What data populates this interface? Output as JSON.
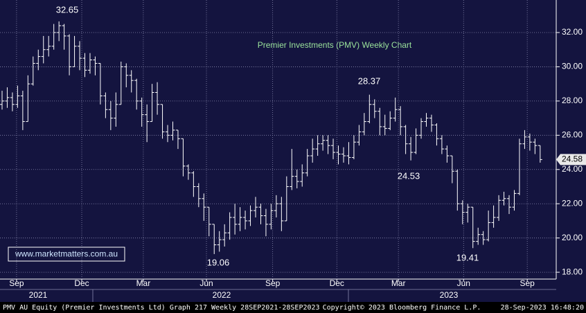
{
  "chart_data": {
    "type": "ohlc",
    "title": "Premier Investments (PMV) Weekly Chart",
    "color": "#ffffff",
    "open": [
      27.8,
      28.0,
      28.2,
      27.8,
      28.3,
      26.8,
      29.0,
      30.2,
      30.6,
      31.0,
      31.2,
      32.0,
      32.4,
      31.8,
      30.0,
      31.2,
      30.5,
      29.8,
      30.4,
      30.2,
      28.3,
      27.5,
      27.0,
      27.8,
      30.0,
      29.5,
      29.2,
      28.0,
      27.2,
      26.8,
      28.5,
      27.8,
      26.2,
      26.0,
      26.3,
      25.8,
      24.2,
      23.8,
      23.0,
      22.3,
      21.8,
      20.8,
      19.6,
      19.9,
      20.3,
      21.2,
      20.8,
      21.2,
      21.0,
      21.6,
      21.8,
      21.3,
      20.8,
      21.6,
      22.0,
      21.0,
      23.0,
      23.6,
      23.3,
      23.8,
      24.8,
      25.2,
      25.5,
      25.7,
      25.4,
      25.0,
      24.9,
      24.8,
      24.7,
      25.6,
      26.2,
      26.8,
      27.8,
      27.4,
      26.5,
      26.4,
      27.0,
      27.5,
      26.5,
      25.5,
      25.0,
      26.0,
      26.8,
      27.0,
      26.6,
      25.8,
      25.2,
      24.8,
      23.9,
      22.0,
      21.5,
      21.8,
      19.8,
      20.2,
      19.9,
      20.9,
      21.2,
      22.2,
      22.3,
      21.8,
      22.6,
      25.5,
      25.9,
      25.6,
      25.4
    ],
    "high": [
      28.6,
      28.8,
      28.5,
      28.9,
      28.6,
      29.5,
      30.6,
      31.0,
      31.8,
      31.8,
      32.5,
      32.65,
      32.5,
      31.9,
      31.8,
      31.5,
      30.8,
      30.8,
      30.6,
      30.2,
      28.5,
      28.0,
      28.5,
      30.3,
      30.2,
      29.8,
      29.3,
      28.2,
      27.8,
      29.0,
      29.1,
      27.8,
      26.6,
      26.8,
      26.3,
      25.8,
      24.3,
      23.9,
      23.2,
      22.6,
      21.8,
      20.8,
      20.4,
      20.8,
      21.5,
      22.0,
      21.8,
      21.6,
      21.9,
      22.4,
      22.0,
      21.7,
      22.0,
      22.5,
      22.4,
      23.6,
      25.2,
      24.0,
      24.3,
      25.2,
      25.8,
      26.0,
      26.0,
      26.0,
      25.8,
      25.4,
      25.3,
      25.6,
      26.0,
      26.6,
      27.3,
      28.37,
      28.1,
      27.6,
      27.2,
      27.4,
      28.2,
      27.7,
      26.6,
      25.9,
      26.4,
      27.0,
      27.3,
      27.2,
      26.7,
      26.0,
      25.4,
      24.8,
      24.0,
      22.2,
      22.0,
      21.8,
      20.6,
      20.4,
      21.6,
      21.9,
      22.5,
      22.7,
      22.5,
      22.8,
      25.8,
      26.3,
      26.1,
      25.8,
      25.4
    ],
    "low": [
      27.5,
      27.6,
      27.4,
      27.6,
      26.3,
      26.8,
      28.9,
      29.8,
      30.2,
      30.6,
      31.0,
      31.5,
      31.0,
      29.5,
      30.0,
      29.8,
      29.4,
      29.6,
      29.5,
      27.8,
      27.0,
      26.3,
      26.5,
      27.8,
      28.8,
      28.5,
      27.5,
      26.5,
      25.6,
      26.8,
      27.2,
      25.8,
      25.6,
      25.7,
      25.2,
      23.6,
      23.4,
      22.4,
      21.8,
      21.0,
      20.1,
      19.06,
      19.2,
      19.5,
      19.9,
      20.2,
      20.4,
      20.5,
      20.7,
      21.2,
      20.8,
      20.1,
      20.5,
      21.2,
      20.4,
      21.0,
      22.8,
      22.9,
      23.0,
      23.6,
      24.4,
      24.8,
      25.1,
      24.9,
      24.6,
      24.3,
      24.4,
      24.3,
      24.6,
      25.4,
      26.0,
      26.7,
      27.0,
      26.0,
      26.0,
      26.3,
      26.8,
      26.0,
      24.9,
      24.53,
      24.9,
      25.8,
      26.5,
      26.2,
      25.4,
      24.9,
      24.4,
      23.2,
      21.6,
      20.8,
      20.9,
      19.41,
      19.6,
      19.6,
      19.8,
      20.6,
      21.0,
      21.9,
      21.4,
      21.6,
      22.5,
      25.2,
      25.1,
      24.9,
      24.4
    ],
    "close": [
      28.0,
      28.2,
      27.8,
      28.3,
      26.8,
      29.0,
      30.2,
      30.6,
      31.0,
      31.2,
      32.0,
      32.4,
      31.8,
      30.0,
      31.2,
      30.5,
      29.8,
      30.4,
      30.2,
      28.3,
      27.5,
      27.0,
      27.8,
      30.0,
      29.5,
      29.2,
      28.0,
      27.2,
      26.8,
      28.5,
      27.8,
      26.2,
      26.0,
      26.3,
      25.8,
      24.2,
      23.8,
      23.0,
      22.3,
      21.8,
      20.8,
      19.6,
      19.9,
      20.3,
      21.2,
      20.8,
      21.2,
      21.0,
      21.6,
      21.8,
      21.3,
      20.8,
      21.6,
      22.0,
      21.0,
      23.0,
      23.6,
      23.3,
      23.8,
      24.8,
      25.2,
      25.5,
      25.7,
      25.4,
      25.0,
      24.9,
      24.8,
      24.7,
      25.6,
      26.2,
      26.8,
      27.8,
      27.4,
      26.5,
      26.4,
      27.0,
      27.5,
      26.5,
      25.5,
      25.0,
      26.0,
      26.8,
      27.0,
      26.6,
      25.8,
      25.2,
      24.8,
      23.9,
      22.0,
      21.5,
      21.8,
      19.8,
      20.2,
      19.9,
      20.9,
      21.2,
      22.2,
      22.3,
      21.8,
      22.6,
      25.5,
      25.9,
      25.6,
      25.4,
      24.58
    ],
    "xlim": [
      -0.4,
      106.7
    ],
    "xticks": [
      {
        "value": 2.8,
        "label": "Sep"
      },
      {
        "value": 15.4,
        "label": "Dec"
      },
      {
        "value": 27.3,
        "label": "Mar"
      },
      {
        "value": 39.5,
        "label": "Jun"
      },
      {
        "value": 52.3,
        "label": "Sep"
      },
      {
        "value": 64.7,
        "label": "Dec"
      },
      {
        "value": 76.6,
        "label": "Mar"
      },
      {
        "value": 89.2,
        "label": "Jun"
      },
      {
        "value": 101.5,
        "label": "Sep"
      }
    ],
    "years": [
      "2021",
      "2022",
      "2023"
    ],
    "ylim": [
      17.6,
      33.9
    ],
    "yticks": [
      {
        "value": 18,
        "label": "18.00"
      },
      {
        "value": 20,
        "label": "20.00"
      },
      {
        "value": 22,
        "label": "22.00"
      },
      {
        "value": 24,
        "label": "24.00"
      },
      {
        "value": 26,
        "label": "26.00"
      },
      {
        "value": 28,
        "label": "28.00"
      },
      {
        "value": 30,
        "label": "30.00"
      },
      {
        "value": 32,
        "label": "32.00"
      }
    ],
    "grid": true,
    "annotations": [
      "32.65",
      "28.37",
      "24.53",
      "19.06",
      "19.41"
    ],
    "watermark": "www.marketmatters.com.au",
    "footer": [
      "PMV AU Equity (Premier Investments Ltd) Graph 217  Weekly 28SEP2021-28SEP2023",
      "Copyright© 2023 Bloomberg Finance L.P.",
      "28-Sep-2023 16:48:20"
    ]
  }
}
